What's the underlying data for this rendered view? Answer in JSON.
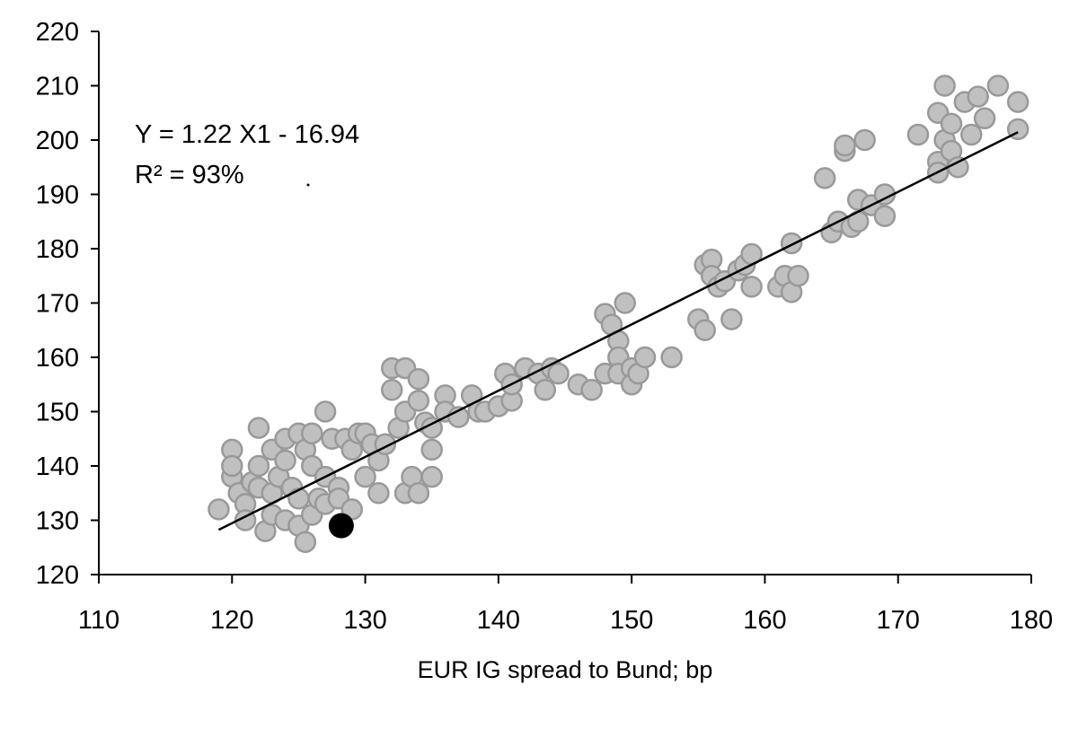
{
  "chart_data": {
    "type": "scatter",
    "title": "",
    "xlabel": "EUR IG spread to Bund; bp",
    "ylabel": "",
    "xlim": [
      110,
      180
    ],
    "ylim": [
      120,
      220
    ],
    "xticks": [
      "110",
      "120",
      "130",
      "140",
      "150",
      "160",
      "170",
      "180"
    ],
    "yticks": [
      "120",
      "130",
      "140",
      "150",
      "160",
      "170",
      "180",
      "190",
      "200",
      "210",
      "220"
    ],
    "grid": false,
    "legend": "none",
    "annotations": [
      "Y = 1.22 X1 - 16.94",
      "R² = 93%"
    ],
    "regression": {
      "slope": 1.22,
      "intercept": -16.94,
      "x_range": [
        119,
        179
      ]
    },
    "colors": {
      "points_fill": "#c0c0c0",
      "points_stroke": "#999999",
      "highlight": "#000000",
      "line": "#000000"
    },
    "highlight_point": {
      "x": 128.2,
      "y": 129
    },
    "points": [
      [
        119,
        132
      ],
      [
        120,
        138
      ],
      [
        120,
        143
      ],
      [
        120,
        140
      ],
      [
        120.5,
        135
      ],
      [
        121,
        133
      ],
      [
        121,
        130
      ],
      [
        121.5,
        137
      ],
      [
        122,
        147
      ],
      [
        122,
        140
      ],
      [
        122,
        136
      ],
      [
        122.5,
        128
      ],
      [
        123,
        131
      ],
      [
        123,
        135
      ],
      [
        123,
        143
      ],
      [
        123.5,
        138
      ],
      [
        124,
        130
      ],
      [
        124,
        141
      ],
      [
        124,
        145
      ],
      [
        124.5,
        136
      ],
      [
        125,
        129
      ],
      [
        125,
        134
      ],
      [
        125,
        146
      ],
      [
        125.5,
        143
      ],
      [
        125.5,
        126
      ],
      [
        126,
        131
      ],
      [
        126,
        140
      ],
      [
        126,
        146
      ],
      [
        126.5,
        134
      ],
      [
        127,
        150
      ],
      [
        127,
        138
      ],
      [
        127,
        133
      ],
      [
        127.5,
        145
      ],
      [
        128,
        136
      ],
      [
        128,
        134
      ],
      [
        128.5,
        145
      ],
      [
        129,
        143
      ],
      [
        129,
        132
      ],
      [
        129.5,
        146
      ],
      [
        130,
        146
      ],
      [
        130,
        138
      ],
      [
        130.5,
        144
      ],
      [
        131,
        135
      ],
      [
        131,
        141
      ],
      [
        131.5,
        144
      ],
      [
        132,
        158
      ],
      [
        132,
        154
      ],
      [
        132.5,
        147
      ],
      [
        133,
        150
      ],
      [
        133,
        158
      ],
      [
        133,
        135
      ],
      [
        133.5,
        138
      ],
      [
        134,
        152
      ],
      [
        134,
        156
      ],
      [
        134,
        135
      ],
      [
        134.5,
        148
      ],
      [
        135,
        143
      ],
      [
        135,
        138
      ],
      [
        135,
        147
      ],
      [
        136,
        153
      ],
      [
        136,
        150
      ],
      [
        137,
        149
      ],
      [
        138,
        153
      ],
      [
        138.5,
        150
      ],
      [
        139,
        150
      ],
      [
        140,
        151
      ],
      [
        140.5,
        157
      ],
      [
        141,
        152
      ],
      [
        141,
        155
      ],
      [
        142,
        158
      ],
      [
        143,
        157
      ],
      [
        143.5,
        154
      ],
      [
        144,
        158
      ],
      [
        144.5,
        157
      ],
      [
        146,
        155
      ],
      [
        147,
        154
      ],
      [
        148,
        157
      ],
      [
        148,
        168
      ],
      [
        148.5,
        166
      ],
      [
        149,
        163
      ],
      [
        149,
        160
      ],
      [
        149,
        157
      ],
      [
        149.5,
        170
      ],
      [
        150,
        158
      ],
      [
        150,
        155
      ],
      [
        150.5,
        157
      ],
      [
        151,
        160
      ],
      [
        153,
        160
      ],
      [
        155,
        167
      ],
      [
        155.5,
        165
      ],
      [
        155.5,
        177
      ],
      [
        156,
        178
      ],
      [
        156,
        175
      ],
      [
        156.5,
        173
      ],
      [
        157,
        174
      ],
      [
        157.5,
        167
      ],
      [
        158,
        176
      ],
      [
        158.5,
        177
      ],
      [
        159,
        179
      ],
      [
        159,
        173
      ],
      [
        161,
        173
      ],
      [
        161.5,
        175
      ],
      [
        162,
        172
      ],
      [
        162,
        181
      ],
      [
        162.5,
        175
      ],
      [
        164.5,
        193
      ],
      [
        165,
        183
      ],
      [
        165.5,
        185
      ],
      [
        166,
        198
      ],
      [
        166,
        199
      ],
      [
        166.5,
        184
      ],
      [
        167,
        189
      ],
      [
        167,
        185
      ],
      [
        167.5,
        200
      ],
      [
        168,
        188
      ],
      [
        169,
        186
      ],
      [
        169,
        190
      ],
      [
        171.5,
        201
      ],
      [
        173,
        205
      ],
      [
        173,
        196
      ],
      [
        173,
        194
      ],
      [
        173.5,
        200
      ],
      [
        173.5,
        210
      ],
      [
        174,
        203
      ],
      [
        174,
        198
      ],
      [
        174.5,
        195
      ],
      [
        175,
        207
      ],
      [
        175.5,
        201
      ],
      [
        176,
        208
      ],
      [
        176.5,
        204
      ],
      [
        177.5,
        210
      ],
      [
        179,
        207
      ],
      [
        179,
        202
      ]
    ]
  }
}
